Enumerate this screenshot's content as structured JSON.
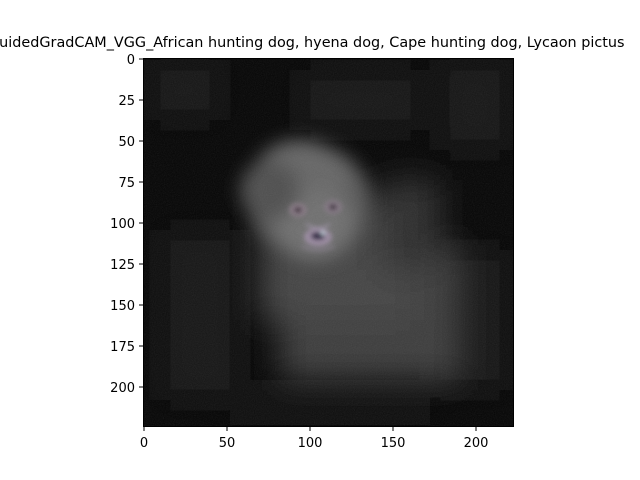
{
  "figure": {
    "title": "GuidedGradCAM_VGG_African hunting dog, hyena dog, Cape hunting dog, Lycaon pictus",
    "image_description": "dark grayscale saliency map; soft grey blob around a dog's head with nose and eyes visible"
  },
  "axes": {
    "x_ticks": [
      "0",
      "50",
      "100",
      "150",
      "200"
    ],
    "y_ticks": [
      "0",
      "25",
      "50",
      "75",
      "100",
      "125",
      "150",
      "175",
      "200"
    ]
  }
}
